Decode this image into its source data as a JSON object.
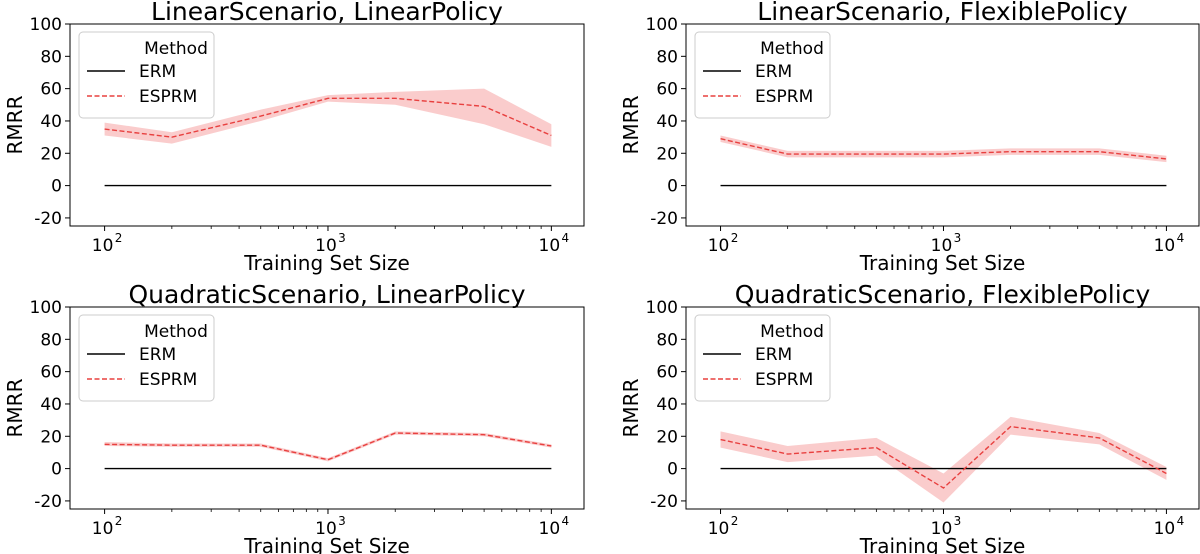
{
  "chart_data": [
    {
      "type": "line",
      "title": "LinearScenario, LinearPolicy",
      "xlabel": "Training Set Size",
      "ylabel": "RMRR",
      "xscale": "log",
      "xlim": [
        70,
        14000
      ],
      "ylim": [
        -25,
        100
      ],
      "yticks": [
        -20,
        0,
        20,
        40,
        60,
        80,
        100
      ],
      "xticks": [
        "10",
        "10",
        "10"
      ],
      "xtick_exps": [
        "2",
        "3",
        "4"
      ],
      "legend": {
        "title": "Method",
        "placement": "top-left",
        "entries": [
          "ERM",
          "ESPRM"
        ]
      },
      "x": [
        100,
        200,
        500,
        1000,
        2000,
        5000,
        10000
      ],
      "series": [
        {
          "name": "ERM",
          "values": [
            0,
            0,
            0,
            0,
            0,
            0,
            0
          ],
          "color": "#000000",
          "style": "solid"
        },
        {
          "name": "ESPRM",
          "values": [
            35,
            30,
            43,
            54,
            54,
            49,
            31
          ],
          "lower": [
            31,
            26,
            40,
            52,
            50,
            38,
            24
          ],
          "upper": [
            39,
            33,
            47,
            56,
            58,
            60,
            38
          ],
          "color": "#e8403f",
          "band_color": "#f9c3c3",
          "style": "dashed"
        }
      ]
    },
    {
      "type": "line",
      "title": "LinearScenario, FlexiblePolicy",
      "xlabel": "Training Set Size",
      "ylabel": "RMRR",
      "xscale": "log",
      "xlim": [
        70,
        14000
      ],
      "ylim": [
        -25,
        100
      ],
      "yticks": [
        -20,
        0,
        20,
        40,
        60,
        80,
        100
      ],
      "xticks": [
        "10",
        "10",
        "10"
      ],
      "xtick_exps": [
        "2",
        "3",
        "4"
      ],
      "legend": {
        "title": "Method",
        "placement": "top-left",
        "entries": [
          "ERM",
          "ESPRM"
        ]
      },
      "x": [
        100,
        200,
        500,
        1000,
        2000,
        5000,
        10000
      ],
      "series": [
        {
          "name": "ERM",
          "values": [
            0,
            0,
            0,
            0,
            0,
            0,
            0
          ],
          "color": "#000000",
          "style": "solid"
        },
        {
          "name": "ESPRM",
          "values": [
            29,
            19.5,
            19.5,
            19.5,
            21,
            21,
            16.5
          ],
          "lower": [
            27,
            17.5,
            17.5,
            17.5,
            19,
            19,
            14.5
          ],
          "upper": [
            31,
            21.5,
            21.5,
            21.5,
            23,
            23,
            18.5
          ],
          "color": "#e8403f",
          "band_color": "#f9c3c3",
          "style": "dashed"
        }
      ]
    },
    {
      "type": "line",
      "title": "QuadraticScenario, LinearPolicy",
      "xlabel": "Training Set Size",
      "ylabel": "RMRR",
      "xscale": "log",
      "xlim": [
        70,
        14000
      ],
      "ylim": [
        -25,
        100
      ],
      "yticks": [
        -20,
        0,
        20,
        40,
        60,
        80,
        100
      ],
      "xticks": [
        "10",
        "10",
        "10"
      ],
      "xtick_exps": [
        "2",
        "3",
        "4"
      ],
      "legend": {
        "title": "Method",
        "placement": "top-left",
        "entries": [
          "ERM",
          "ESPRM"
        ]
      },
      "x": [
        100,
        200,
        500,
        1000,
        2000,
        5000,
        10000
      ],
      "series": [
        {
          "name": "ERM",
          "values": [
            0,
            0,
            0,
            0,
            0,
            0,
            0
          ],
          "color": "#000000",
          "style": "solid"
        },
        {
          "name": "ESPRM",
          "values": [
            15,
            14.5,
            14.5,
            5.5,
            22,
            21,
            14
          ],
          "lower": [
            14,
            13.5,
            13.5,
            4.5,
            21,
            20,
            13
          ],
          "upper": [
            16.5,
            15.5,
            15.5,
            6.5,
            23,
            22,
            15
          ],
          "color": "#e8403f",
          "band_color": "#f9c3c3",
          "style": "dashed"
        }
      ]
    },
    {
      "type": "line",
      "title": "QuadraticScenario, FlexiblePolicy",
      "xlabel": "Training Set Size",
      "ylabel": "RMRR",
      "xscale": "log",
      "xlim": [
        70,
        14000
      ],
      "ylim": [
        -25,
        100
      ],
      "yticks": [
        -20,
        0,
        20,
        40,
        60,
        80,
        100
      ],
      "xticks": [
        "10",
        "10",
        "10"
      ],
      "xtick_exps": [
        "2",
        "3",
        "4"
      ],
      "legend": {
        "title": "Method",
        "placement": "top-left",
        "entries": [
          "ERM",
          "ESPRM"
        ]
      },
      "x": [
        100,
        200,
        500,
        1000,
        2000,
        5000,
        10000
      ],
      "series": [
        {
          "name": "ERM",
          "values": [
            0,
            0,
            0,
            0,
            0,
            0,
            0
          ],
          "color": "#000000",
          "style": "solid"
        },
        {
          "name": "ESPRM",
          "values": [
            18,
            9,
            13,
            -12,
            26,
            19,
            -3
          ],
          "lower": [
            13,
            4,
            8,
            -21,
            21,
            15,
            -7
          ],
          "upper": [
            23,
            14,
            19,
            -3,
            32,
            22,
            1
          ],
          "color": "#e8403f",
          "band_color": "#f9c3c3",
          "style": "dashed"
        }
      ]
    }
  ]
}
